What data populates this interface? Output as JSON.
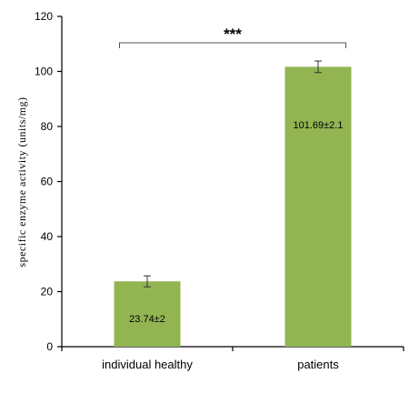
{
  "chart_data": {
    "type": "bar",
    "categories": [
      "individual healthy",
      "patients"
    ],
    "values": [
      23.74,
      101.69
    ],
    "errors": [
      2,
      2.1
    ],
    "data_labels": [
      "23.74±2",
      "101.69±2.1"
    ],
    "ylabel": "specific  enzyme  activity  (units/mg)",
    "ylim": [
      0,
      120
    ],
    "yticks": [
      0,
      20,
      40,
      60,
      80,
      100,
      120
    ],
    "bar_color": "#92b552",
    "significance": "***",
    "grid": false,
    "legend": "none"
  }
}
